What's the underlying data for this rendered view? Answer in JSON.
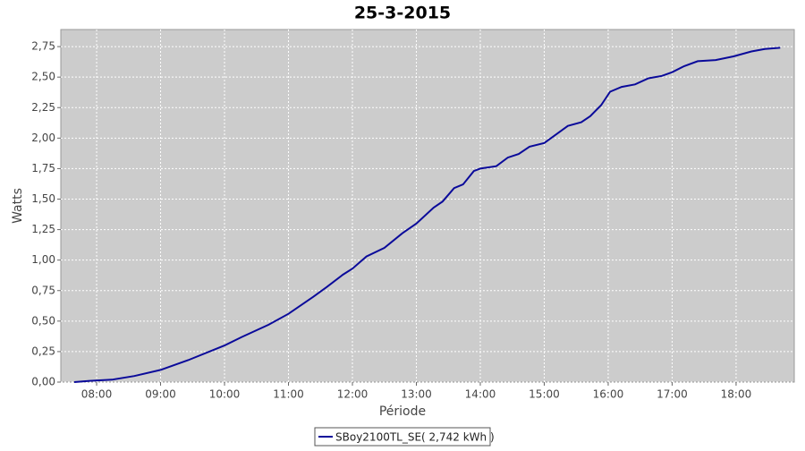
{
  "chart_data": {
    "type": "line",
    "title": "25-3-2015",
    "x_label": "Période",
    "y_label": "Watts",
    "xlim": [
      7.44,
      18.91
    ],
    "ylim": [
      0,
      2.89
    ],
    "xticks": [
      {
        "value": 8,
        "label": "08:00"
      },
      {
        "value": 9,
        "label": "09:00"
      },
      {
        "value": 10,
        "label": "10:00"
      },
      {
        "value": 11,
        "label": "11:00"
      },
      {
        "value": 12,
        "label": "12:00"
      },
      {
        "value": 13,
        "label": "13:00"
      },
      {
        "value": 14,
        "label": "14:00"
      },
      {
        "value": 15,
        "label": "15:00"
      },
      {
        "value": 16,
        "label": "16:00"
      },
      {
        "value": 17,
        "label": "17:00"
      },
      {
        "value": 18,
        "label": "18:00"
      }
    ],
    "yticks": [
      {
        "value": 0,
        "label": "0,00"
      },
      {
        "value": 0.25,
        "label": "0,25"
      },
      {
        "value": 0.5,
        "label": "0,50"
      },
      {
        "value": 0.75,
        "label": "0,75"
      },
      {
        "value": 1,
        "label": "1,00"
      },
      {
        "value": 1.25,
        "label": "1,25"
      },
      {
        "value": 1.5,
        "label": "1,50"
      },
      {
        "value": 1.75,
        "label": "1,75"
      },
      {
        "value": 2,
        "label": "2,00"
      },
      {
        "value": 2.25,
        "label": "2,25"
      },
      {
        "value": 2.5,
        "label": "2,50"
      },
      {
        "value": 2.75,
        "label": "2,75"
      }
    ],
    "grid": true,
    "x": [
      7.65,
      7.89,
      8.24,
      8.59,
      9.0,
      9.43,
      10.0,
      10.27,
      10.69,
      11.0,
      11.39,
      11.6,
      11.85,
      12.0,
      12.22,
      12.5,
      12.78,
      13.0,
      13.27,
      13.41,
      13.59,
      13.73,
      13.9,
      14.0,
      14.25,
      14.43,
      14.6,
      14.77,
      15.0,
      15.16,
      15.37,
      15.58,
      15.72,
      15.89,
      16.03,
      16.21,
      16.42,
      16.63,
      16.84,
      17.0,
      17.19,
      17.4,
      17.68,
      17.96,
      18.24,
      18.45,
      18.69
    ],
    "series": [
      {
        "name": "SBoy2100TL_SE( 2,742 kWh )",
        "color": "#0a0a9a",
        "values": [
          0.0,
          0.01,
          0.02,
          0.05,
          0.1,
          0.18,
          0.3,
          0.37,
          0.47,
          0.56,
          0.7,
          0.78,
          0.88,
          0.93,
          1.03,
          1.1,
          1.22,
          1.3,
          1.43,
          1.48,
          1.59,
          1.62,
          1.73,
          1.75,
          1.77,
          1.84,
          1.87,
          1.93,
          1.96,
          2.02,
          2.1,
          2.13,
          2.18,
          2.27,
          2.38,
          2.42,
          2.44,
          2.49,
          2.51,
          2.54,
          2.59,
          2.63,
          2.64,
          2.67,
          2.71,
          2.73,
          2.74
        ]
      }
    ]
  }
}
